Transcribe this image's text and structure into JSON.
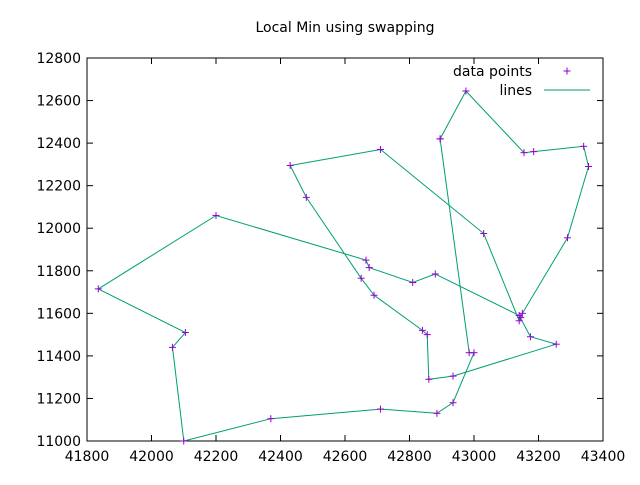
{
  "chart_data": {
    "type": "line",
    "title": "Local Min using swapping",
    "xlabel": "",
    "ylabel": "",
    "xlim": [
      41800,
      43400
    ],
    "ylim": [
      11000,
      12800
    ],
    "xticks": [
      41800,
      42000,
      42200,
      42400,
      42600,
      42800,
      43000,
      43200,
      43400
    ],
    "yticks": [
      11000,
      11200,
      11400,
      11600,
      11800,
      12000,
      12200,
      12400,
      12600,
      12800
    ],
    "grid": false,
    "legend_position": "top-right",
    "colors": {
      "points": "#9400d3",
      "line": "#009e73"
    },
    "series": [
      {
        "name": "data points",
        "style": "points"
      },
      {
        "name": "lines",
        "style": "line"
      }
    ],
    "x": [
      42895,
      42975,
      43155,
      43185,
      43340,
      43355,
      43290,
      43150,
      43145,
      43140,
      43030,
      42710,
      42430,
      42480,
      42650,
      42690,
      42840,
      42855,
      42860,
      42935,
      43255,
      43175,
      43140,
      42880,
      42810,
      42675,
      42665,
      42200,
      41835,
      42105,
      42065,
      42100,
      42370,
      42710,
      42885,
      42935,
      43000,
      42985,
      42895
    ],
    "y": [
      12420,
      12645,
      12355,
      12360,
      12385,
      12290,
      11955,
      11600,
      11580,
      11565,
      11975,
      12370,
      12295,
      12145,
      11765,
      11685,
      11520,
      11500,
      11290,
      11305,
      11455,
      11490,
      11590,
      11785,
      11745,
      11815,
      11850,
      12060,
      11715,
      11510,
      11440,
      11000,
      11105,
      11150,
      11130,
      11180,
      11415,
      11415,
      12420
    ]
  }
}
